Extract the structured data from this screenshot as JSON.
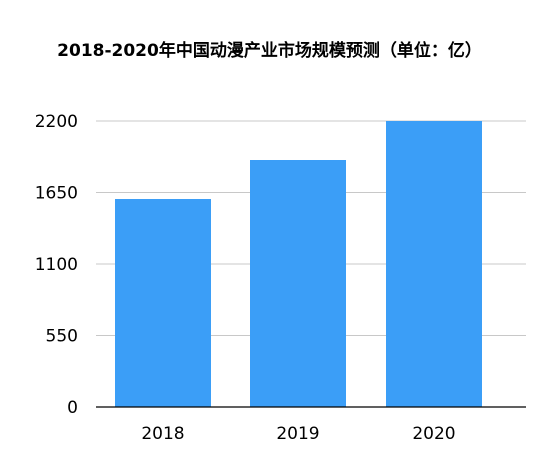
{
  "chart_data": {
    "type": "bar",
    "title": "2018-2020年中国动漫产业市场规模预测（单位：亿）",
    "categories": [
      "2018",
      "2019",
      "2020"
    ],
    "values": [
      1600,
      1900,
      2200
    ],
    "ylim": [
      0,
      2200
    ],
    "yticks": [
      0,
      550,
      1100,
      1650,
      2200
    ],
    "xlabel": "",
    "ylabel": "",
    "grid": true,
    "legend": "none",
    "bar_color": "#3b9ef7",
    "grid_color": "#c8c8c8",
    "axis_color": "#000000"
  }
}
